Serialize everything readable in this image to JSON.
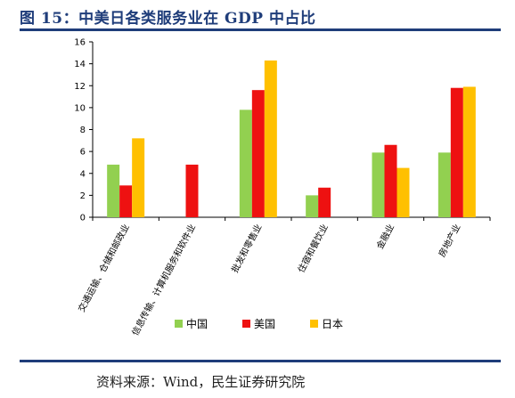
{
  "header": {
    "title": "图 15：中美日各类服务业在 GDP 中占比"
  },
  "footer": {
    "source": "资料来源：Wind，民生证券研究院"
  },
  "colors": {
    "中国": "#92d050",
    "美国": "#ee1111",
    "日本": "#ffc000",
    "title": "#1f3d7a"
  },
  "chart_data": {
    "type": "bar",
    "title": "",
    "xlabel": "",
    "ylabel": "",
    "ylim": [
      0,
      16
    ],
    "yticks": [
      0,
      2,
      4,
      6,
      8,
      10,
      12,
      14,
      16
    ],
    "grid": false,
    "legend": "bottom",
    "categories": [
      "交通运输、仓储和邮政业",
      "信息传输、计算机服务和软件业",
      "批发和零售业",
      "住宿和餐饮业",
      "金融业",
      "房地产业"
    ],
    "series": [
      {
        "name": "中国",
        "values": [
          4.8,
          0,
          9.8,
          2.0,
          5.9,
          5.9
        ]
      },
      {
        "name": "美国",
        "values": [
          2.9,
          4.8,
          11.6,
          2.7,
          6.6,
          11.8
        ]
      },
      {
        "name": "日本",
        "values": [
          7.2,
          0,
          14.3,
          0,
          4.5,
          11.9
        ]
      }
    ]
  }
}
